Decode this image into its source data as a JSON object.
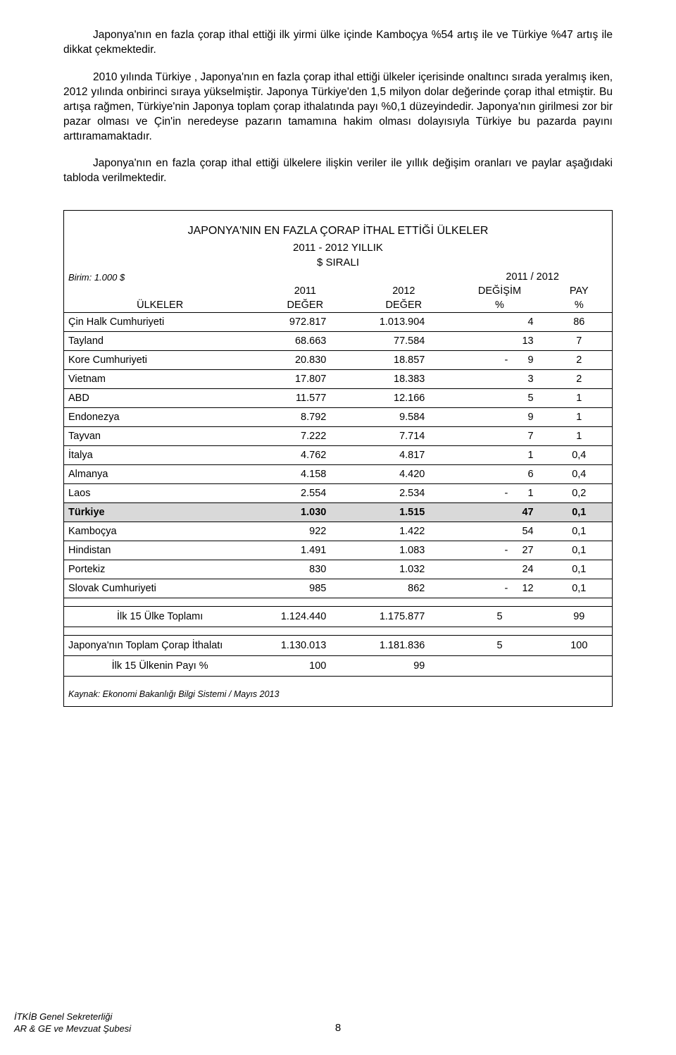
{
  "paragraphs": {
    "p1": "Japonya'nın en fazla çorap ithal ettiği ilk yirmi ülke içinde Kamboçya %54 artış ile ve Türkiye %47 artış ile dikkat çekmektedir.",
    "p2": "2010 yılında Türkiye , Japonya'nın en fazla çorap ithal ettiği ülkeler içerisinde onaltıncı sırada yeralmış iken, 2012 yılında onbirinci sıraya yükselmiştir. Japonya Türkiye'den 1,5 milyon dolar değerinde çorap ithal etmiştir. Bu artışa rağmen, Türkiye'nin Japonya toplam çorap ithalatında payı %0,1 düzeyindedir. Japonya'nın girilmesi zor bir pazar olması ve Çin'in neredeyse pazarın tamamına hakim olması dolayısıyla Türkiye bu pazarda payını arttıramamaktadır.",
    "p3": "Japonya'nın en fazla çorap ithal ettiği ülkelere ilişkin veriler ile yıllık değişim oranları ve paylar aşağıdaki tabloda verilmektedir."
  },
  "table": {
    "title": "JAPONYA'NIN EN FAZLA ÇORAP İTHAL ETTİĞİ ÜLKELER",
    "subtitle1": "2011 - 2012 YILLIK",
    "subtitle2": "$ SIRALI",
    "unit_label": "Birim: 1.000 $",
    "year_span": "2011 / 2012",
    "col_year1": "2011",
    "col_year2": "2012",
    "col_change": "DEĞİŞİM",
    "col_share": "PAY",
    "col_countries": "ÜLKELER",
    "col_value": "DEĞER",
    "col_pct": "%",
    "highlight_country": "Türkiye",
    "rows": [
      {
        "country": "Çin Halk Cumhuriyeti",
        "v1": "972.817",
        "v2": "1.013.904",
        "chg": "4",
        "share": "86"
      },
      {
        "country": "Tayland",
        "v1": "68.663",
        "v2": "77.584",
        "chg": "13",
        "share": "7"
      },
      {
        "country": "Kore Cumhuriyeti",
        "v1": "20.830",
        "v2": "18.857",
        "chg": "-       9",
        "share": "2"
      },
      {
        "country": "Vietnam",
        "v1": "17.807",
        "v2": "18.383",
        "chg": "3",
        "share": "2"
      },
      {
        "country": "ABD",
        "v1": "11.577",
        "v2": "12.166",
        "chg": "5",
        "share": "1"
      },
      {
        "country": "Endonezya",
        "v1": "8.792",
        "v2": "9.584",
        "chg": "9",
        "share": "1"
      },
      {
        "country": "Tayvan",
        "v1": "7.222",
        "v2": "7.714",
        "chg": "7",
        "share": "1"
      },
      {
        "country": "İtalya",
        "v1": "4.762",
        "v2": "4.817",
        "chg": "1",
        "share": "0,4"
      },
      {
        "country": "Almanya",
        "v1": "4.158",
        "v2": "4.420",
        "chg": "6",
        "share": "0,4"
      },
      {
        "country": "Laos",
        "v1": "2.554",
        "v2": "2.534",
        "chg": "-       1",
        "share": "0,2"
      },
      {
        "country": "Türkiye",
        "v1": "1.030",
        "v2": "1.515",
        "chg": "47",
        "share": "0,1"
      },
      {
        "country": "Kamboçya",
        "v1": "922",
        "v2": "1.422",
        "chg": "54",
        "share": "0,1"
      },
      {
        "country": "Hindistan",
        "v1": "1.491",
        "v2": "1.083",
        "chg": "-     27",
        "share": "0,1"
      },
      {
        "country": "Portekiz",
        "v1": "830",
        "v2": "1.032",
        "chg": "24",
        "share": "0,1"
      },
      {
        "country": "Slovak Cumhuriyeti",
        "v1": "985",
        "v2": "862",
        "chg": "-     12",
        "share": "0,1"
      }
    ],
    "sum1": {
      "label": "İlk 15 Ülke Toplamı",
      "v1": "1.124.440",
      "v2": "1.175.877",
      "chg": "5",
      "share": "99"
    },
    "sum2": {
      "label": "Japonya'nın Toplam Çorap İthalatı",
      "v1": "1.130.013",
      "v2": "1.181.836",
      "chg": "5",
      "share": "100"
    },
    "sum3": {
      "label": "İlk 15 Ülkenin Payı %",
      "v1": "100",
      "v2": "99",
      "chg": "",
      "share": ""
    },
    "source": "Kaynak: Ekonomi Bakanlığı Bilgi Sistemi / Mayıs 2013"
  },
  "footer": {
    "page_number": "8",
    "line1": "İTKİB Genel Sekreterliği",
    "line2": "AR & GE ve Mevzuat Şubesi"
  },
  "colors": {
    "highlight_bg": "#d9d9d9",
    "text": "#000000",
    "border": "#000000",
    "background": "#ffffff"
  }
}
